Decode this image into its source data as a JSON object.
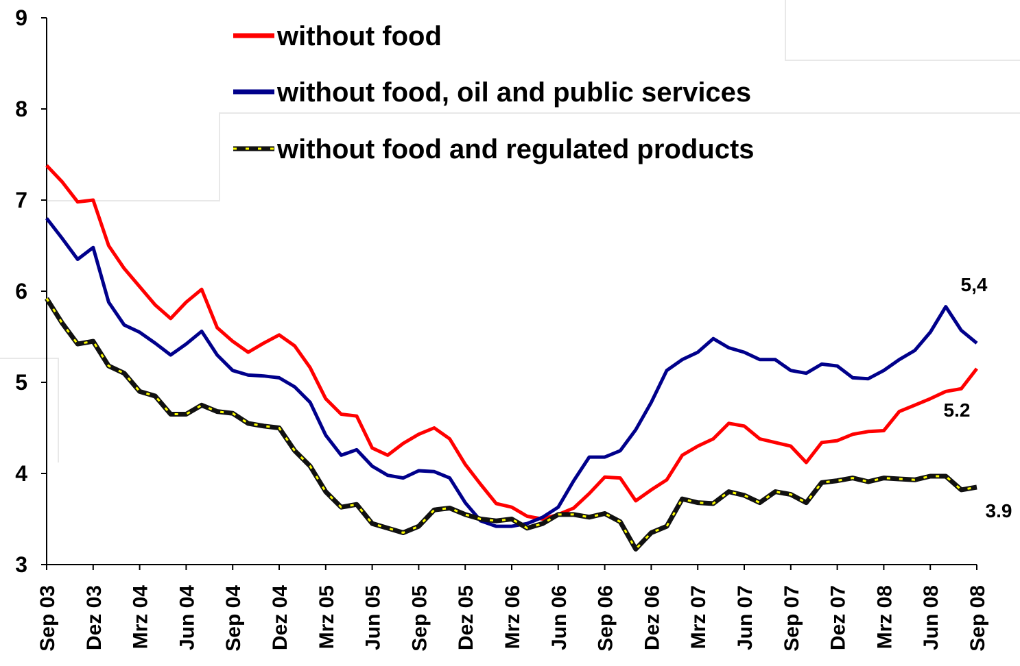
{
  "chart_data": {
    "type": "line",
    "title": "",
    "xlabel": "",
    "ylabel": "",
    "ylim": [
      3,
      9
    ],
    "yticks": [
      "3",
      "4",
      "5",
      "6",
      "7",
      "8",
      "9"
    ],
    "xtick_labels": [
      "Sep 03",
      "Dez 03",
      "Mrz 04",
      "Jun 04",
      "Sep 04",
      "Dez 04",
      "Mrz 05",
      "Jun 05",
      "Sep 05",
      "Dez 05",
      "Mrz 06",
      "Jun 06",
      "Sep 06",
      "Dez 06",
      "Mrz 07",
      "Jun 07",
      "Sep 07",
      "Dez 07",
      "Mrz 08",
      "Jun 08",
      "Sep 08"
    ],
    "x": [
      "Sep 03",
      "Okt 03",
      "Nov 03",
      "Dez 03",
      "Jan 04",
      "Feb 04",
      "Mrz 04",
      "Apr 04",
      "Mai 04",
      "Jun 04",
      "Jul 04",
      "Aug 04",
      "Sep 04",
      "Okt 04",
      "Nov 04",
      "Dez 04",
      "Jan 05",
      "Feb 05",
      "Mrz 05",
      "Apr 05",
      "Mai 05",
      "Jun 05",
      "Jul 05",
      "Aug 05",
      "Sep 05",
      "Okt 05",
      "Nov 05",
      "Dez 05",
      "Jan 06",
      "Feb 06",
      "Mrz 06",
      "Apr 06",
      "Mai 06",
      "Jun 06",
      "Jul 06",
      "Aug 06",
      "Sep 06",
      "Okt 06",
      "Nov 06",
      "Dez 06",
      "Jan 07",
      "Feb 07",
      "Mrz 07",
      "Apr 07",
      "Mai 07",
      "Jun 07",
      "Jul 07",
      "Aug 07",
      "Sep 07",
      "Okt 07",
      "Nov 07",
      "Dez 07",
      "Jan 08",
      "Feb 08",
      "Mrz 08",
      "Apr 08",
      "Mai 08",
      "Jun 08",
      "Jul 08",
      "Aug 08",
      "Sep 08"
    ],
    "series": [
      {
        "name": "without food",
        "color": "#ff0000",
        "style": "solid",
        "values": [
          7.38,
          7.2,
          6.98,
          7.0,
          6.5,
          6.25,
          6.05,
          5.85,
          5.7,
          5.88,
          6.02,
          5.6,
          5.45,
          5.33,
          5.43,
          5.52,
          5.4,
          5.16,
          4.82,
          4.65,
          4.63,
          4.28,
          4.2,
          4.33,
          4.43,
          4.5,
          4.38,
          4.1,
          3.88,
          3.67,
          3.63,
          3.53,
          3.5,
          3.55,
          3.62,
          3.78,
          3.96,
          3.95,
          3.7,
          3.82,
          3.93,
          4.2,
          4.3,
          4.38,
          4.55,
          4.52,
          4.38,
          4.34,
          4.3,
          4.12,
          4.34,
          4.36,
          4.43,
          4.46,
          4.47,
          4.68,
          4.75,
          4.82,
          4.9,
          4.93,
          5.15
        ]
      },
      {
        "name": "without food, oil and public services",
        "color": "#00008b",
        "style": "solid",
        "values": [
          6.8,
          6.58,
          6.35,
          6.48,
          5.88,
          5.63,
          5.55,
          5.43,
          5.3,
          5.42,
          5.56,
          5.3,
          5.13,
          5.08,
          5.07,
          5.05,
          4.95,
          4.78,
          4.42,
          4.2,
          4.26,
          4.08,
          3.98,
          3.95,
          4.03,
          4.02,
          3.95,
          3.68,
          3.48,
          3.42,
          3.42,
          3.45,
          3.52,
          3.63,
          3.92,
          4.18,
          4.18,
          4.25,
          4.48,
          4.78,
          5.13,
          5.25,
          5.33,
          5.48,
          5.38,
          5.33,
          5.25,
          5.25,
          5.13,
          5.1,
          5.2,
          5.18,
          5.05,
          5.04,
          5.13,
          5.25,
          5.35,
          5.55,
          5.83,
          5.57,
          5.43
        ]
      },
      {
        "name": "without food and regulated products",
        "color": "#111111",
        "dash_color": "#ffff00",
        "style": "dashed",
        "values": [
          5.92,
          5.65,
          5.42,
          5.45,
          5.18,
          5.1,
          4.9,
          4.85,
          4.65,
          4.65,
          4.75,
          4.68,
          4.66,
          4.55,
          4.52,
          4.5,
          4.25,
          4.08,
          3.8,
          3.63,
          3.66,
          3.45,
          3.4,
          3.35,
          3.42,
          3.6,
          3.62,
          3.55,
          3.5,
          3.48,
          3.5,
          3.4,
          3.45,
          3.55,
          3.55,
          3.52,
          3.56,
          3.47,
          3.17,
          3.35,
          3.42,
          3.72,
          3.68,
          3.67,
          3.8,
          3.76,
          3.68,
          3.8,
          3.77,
          3.68,
          3.9,
          3.92,
          3.95,
          3.91,
          3.95,
          3.94,
          3.93,
          3.97,
          3.97,
          3.82,
          3.85
        ]
      }
    ],
    "annotations": [
      {
        "text": "5,4",
        "series": 1
      },
      {
        "text": "5.2",
        "series": 0
      },
      {
        "text": "3.9",
        "series": 2
      }
    ],
    "legend": {
      "placement": "top-center"
    },
    "grid": false
  }
}
